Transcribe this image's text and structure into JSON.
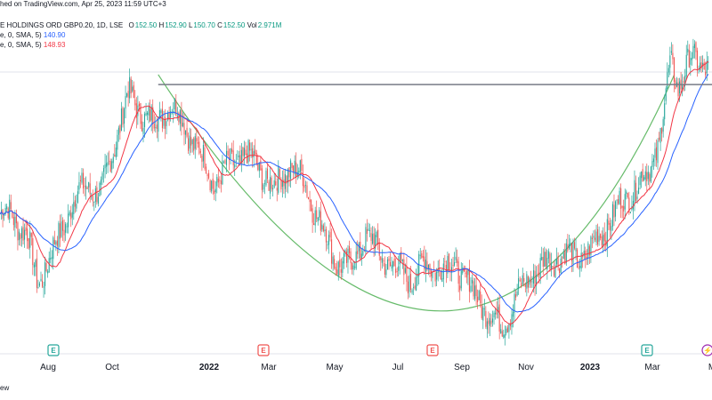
{
  "header": {
    "line1": {
      "prefix": "hed on TradingView.com, Apr 25, 2023 11:59 UTC+3",
      "symbol": "E HOLDINGS ORD GBP0.20, 1D, LSE",
      "o_label": "O",
      "o_value": "152.50",
      "h_label": "H",
      "h_value": "152.90",
      "l_label": "L",
      "l_value": "150.70",
      "c_label": "C",
      "c_value": "152.50",
      "vol_label": "Vol",
      "vol_value": "2.971M"
    },
    "ma1_label": "e, 0, SMA, 5)",
    "ma1_value": "140.90",
    "ma2_label": "e, 0, SMA, 5)",
    "ma2_value": "148.93"
  },
  "footer_text": "ew",
  "colors": {
    "up": "#26a69a",
    "down": "#ef5350",
    "ma_fast": "#f23645",
    "ma_slow": "#2962ff",
    "cup": "#66bb6a",
    "resistance": "#787b86",
    "event_e": "#26a69a",
    "event_e_red": "#ef5350",
    "event_split": "#9c27b0"
  },
  "chart_data": {
    "type": "candlestick",
    "x_tick_labels": [
      "Aug",
      "Oct",
      "2022",
      "Mar",
      "May",
      "Jul",
      "Sep",
      "Nov",
      "2023",
      "Mar",
      "M"
    ],
    "bold_ticks": [
      "2022",
      "2023"
    ],
    "events": [
      {
        "label": "E",
        "style": "green"
      },
      {
        "label": "E",
        "style": "red"
      },
      {
        "label": "E",
        "style": "red"
      },
      {
        "label": "E",
        "style": "green"
      },
      {
        "label": "⚡",
        "style": "purple"
      }
    ],
    "ohlc_last": {
      "open": 152.5,
      "high": 152.9,
      "low": 150.7,
      "close": 152.5,
      "volume": "2.971M"
    },
    "ma_fast_last": 148.93,
    "ma_slow_last": 140.9,
    "price_path": [
      [
        2021.46,
        122
      ],
      [
        2021.5,
        118
      ],
      [
        2021.53,
        108
      ],
      [
        2021.58,
        116
      ],
      [
        2021.62,
        124
      ],
      [
        2021.66,
        128
      ],
      [
        2021.7,
        126
      ],
      [
        2021.74,
        138
      ],
      [
        2021.77,
        146
      ],
      [
        2021.8,
        143
      ],
      [
        2021.84,
        140
      ],
      [
        2021.88,
        144
      ],
      [
        2021.92,
        140
      ],
      [
        2021.96,
        134
      ],
      [
        2022.0,
        128
      ],
      [
        2022.04,
        132
      ],
      [
        2022.08,
        134
      ],
      [
        2022.12,
        131
      ],
      [
        2022.16,
        127
      ],
      [
        2022.2,
        132
      ],
      [
        2022.24,
        128
      ],
      [
        2022.28,
        120
      ],
      [
        2022.32,
        113
      ],
      [
        2022.36,
        111
      ],
      [
        2022.4,
        118
      ],
      [
        2022.44,
        114
      ],
      [
        2022.48,
        111
      ],
      [
        2022.52,
        109
      ],
      [
        2022.56,
        112
      ],
      [
        2022.6,
        111
      ],
      [
        2022.64,
        112
      ],
      [
        2022.68,
        107
      ],
      [
        2022.72,
        103
      ],
      [
        2022.76,
        99
      ],
      [
        2022.8,
        105
      ],
      [
        2022.84,
        110
      ],
      [
        2022.88,
        112
      ],
      [
        2022.92,
        114
      ],
      [
        2022.96,
        113
      ],
      [
        2023.0,
        115
      ],
      [
        2023.05,
        121
      ],
      [
        2023.1,
        126
      ],
      [
        2023.15,
        130
      ],
      [
        2023.18,
        137
      ],
      [
        2023.21,
        152
      ],
      [
        2023.23,
        148
      ],
      [
        2023.26,
        153
      ],
      [
        2023.29,
        152
      ],
      [
        2023.31,
        152.5
      ]
    ],
    "resistance_level": 148,
    "cup_points": [
      [
        2021.85,
        150
      ],
      [
        2022.6,
        102.5
      ],
      [
        2023.22,
        150
      ]
    ],
    "x_range": [
      2021.43,
      2023.32
    ],
    "y_range": [
      98,
      155
    ],
    "grid": false,
    "legend": "top-left"
  }
}
